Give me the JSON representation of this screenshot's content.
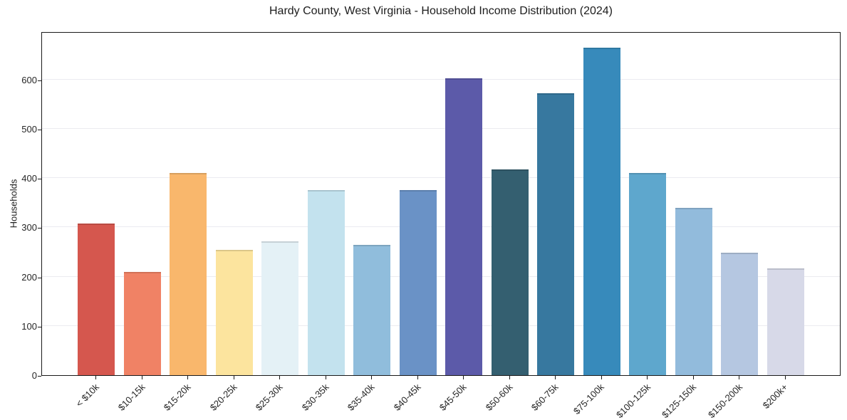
{
  "chart_data": {
    "type": "bar",
    "title": "Hardy County, West Virginia - Household Income Distribution (2024)",
    "xlabel": "",
    "ylabel": "Households",
    "categories": [
      "< $10k",
      "$10-15k",
      "$15-20k",
      "$20-25k",
      "$25-30k",
      "$30-35k",
      "$35-40k",
      "$40-45k",
      "$45-50k",
      "$50-60k",
      "$60-75k",
      "$75-100k",
      "$100-125k",
      "$125-150k",
      "$150-200k",
      "$200k+"
    ],
    "values": [
      308,
      209,
      411,
      254,
      272,
      376,
      265,
      376,
      602,
      417,
      573,
      665,
      410,
      340,
      249,
      217
    ],
    "bar_colors": [
      "#d5574e",
      "#f08265",
      "#f9b76c",
      "#fce49e",
      "#e4f1f6",
      "#c3e2ee",
      "#90bddc",
      "#6a92c6",
      "#5c5aa9",
      "#345f70",
      "#37789f",
      "#378abb",
      "#5ea7cd",
      "#92bbdc",
      "#b5c7e1",
      "#d7d9e8"
    ],
    "yticks": [
      0,
      100,
      200,
      300,
      400,
      500,
      600
    ],
    "ylim": [
      0,
      698
    ],
    "grid": "horizontal",
    "legend": "none",
    "background_color": "#ffffff",
    "axis_color": "#1a1a1a"
  }
}
